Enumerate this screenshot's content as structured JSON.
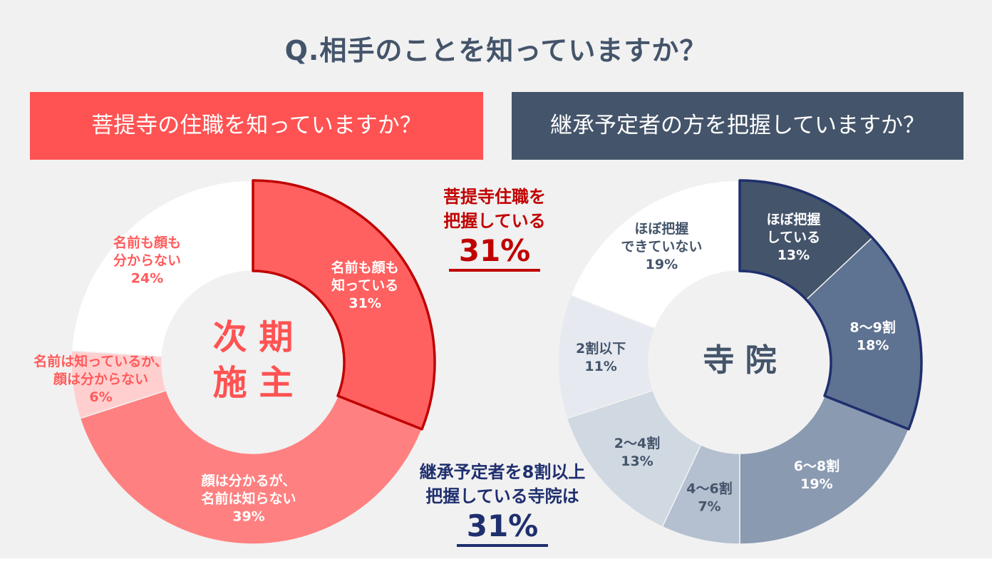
{
  "title": "Q.相手のことを知っていますか？",
  "banners": {
    "left": "菩提寺の住職を知っていますか？",
    "right": "継承予定者の方を把握していますか？"
  },
  "callouts": {
    "top": {
      "line1": "菩提寺住職を",
      "line2": "把握している",
      "value": "31%"
    },
    "bottom": {
      "line1": "継承予定者を8割以上",
      "line2": "把握している寺院は",
      "value": "31%"
    }
  },
  "colors": {
    "left_banner": "#ff5252",
    "right_banner": "#44546a",
    "accent_red": "#c00000",
    "accent_navy": "#1f2f6e"
  },
  "chart_data": [
    {
      "type": "pie",
      "variant": "donut",
      "center_label": [
        "次 期",
        "施 主"
      ],
      "slices": [
        {
          "label": [
            "名前も顔も",
            "知っている"
          ],
          "value": 31,
          "value_label": "31%",
          "color": "#ff6060",
          "label_color": "#ffffff",
          "highlight": true
        },
        {
          "label": [
            "顔は分かるが、",
            "名前は知らない"
          ],
          "value": 39,
          "value_label": "39%",
          "color": "#ff8080",
          "label_color": "#ffffff",
          "highlight": false
        },
        {
          "label": [
            "名前は知っているが、",
            "顔は分からない"
          ],
          "value": 6,
          "value_label": "6%",
          "color": "#ffcfcf",
          "label_color": "#ff5b5b",
          "highlight": false
        },
        {
          "label": [
            "名前も顔も",
            "分からない"
          ],
          "value": 24,
          "value_label": "24%",
          "color": "#ffffff",
          "label_color": "#ff5b5b",
          "highlight": false
        }
      ]
    },
    {
      "type": "pie",
      "variant": "donut",
      "center_label": [
        "寺 院"
      ],
      "slices": [
        {
          "label": [
            "ほぼ把握",
            "している"
          ],
          "value": 13,
          "value_label": "13%",
          "color": "#44546a",
          "label_color": "#ffffff",
          "highlight": true
        },
        {
          "label": [
            "8～9割"
          ],
          "value": 18,
          "value_label": "18%",
          "color": "#5e7291",
          "label_color": "#ffffff",
          "highlight": true
        },
        {
          "label": [
            "6～8割"
          ],
          "value": 19,
          "value_label": "19%",
          "color": "#8a9ab1",
          "label_color": "#ffffff",
          "highlight": false
        },
        {
          "label": [
            "4～6割"
          ],
          "value": 7,
          "value_label": "7%",
          "color": "#b4bfcf",
          "label_color": "#44546a",
          "highlight": false
        },
        {
          "label": [
            "2～4割"
          ],
          "value": 13,
          "value_label": "13%",
          "color": "#d0d8e2",
          "label_color": "#44546a",
          "highlight": false
        },
        {
          "label": [
            "2割以下"
          ],
          "value": 11,
          "value_label": "11%",
          "color": "#e6eaf0",
          "label_color": "#44546a",
          "highlight": false
        },
        {
          "label": [
            "ほぼ把握",
            "できていない"
          ],
          "value": 19,
          "value_label": "19%",
          "color": "#ffffff",
          "label_color": "#44546a",
          "highlight": false
        }
      ]
    }
  ]
}
